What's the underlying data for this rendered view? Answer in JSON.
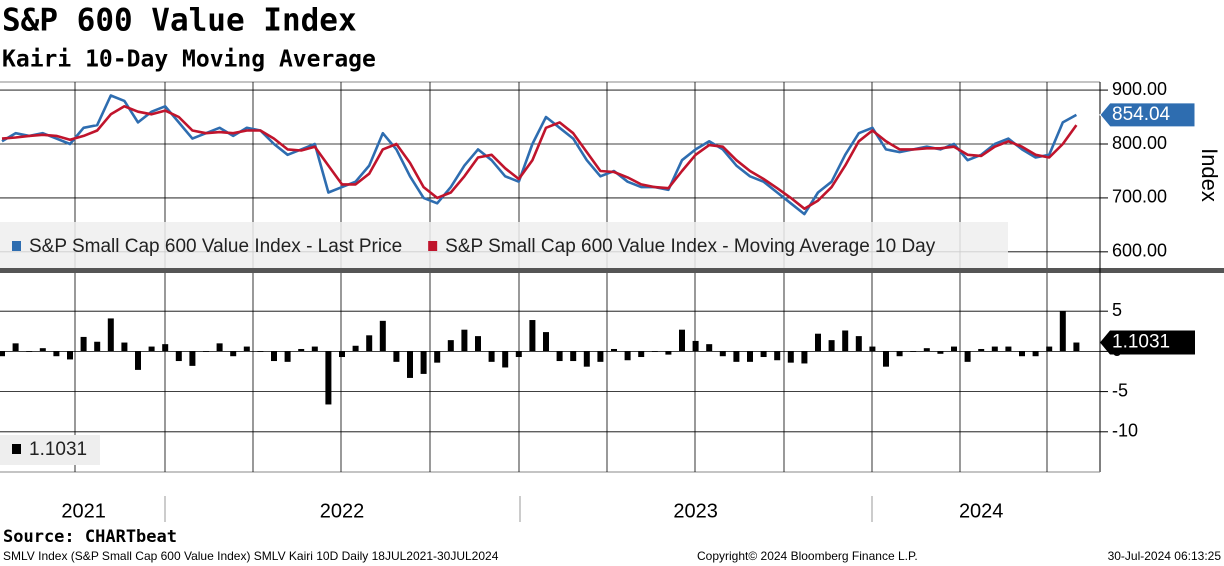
{
  "title": "S&P 600 Value Index",
  "subtitle": "Kairi 10-Day Moving Average",
  "source": "Source: CHARTbeat",
  "footer": {
    "left": "SMLV Index (S&P Small Cap 600 Value Index) SMLV Kairi 10D  Daily 18JUL2021-30JUL2024",
    "center": "Copyright© 2024 Bloomberg Finance L.P.",
    "right": "30-Jul-2024 06:13:25"
  },
  "chart_data": [
    {
      "type": "line",
      "categories": [
        null,
        null,
        null,
        null,
        null,
        null,
        "2021",
        null,
        null,
        null,
        null,
        null,
        null,
        null,
        null,
        null,
        null,
        null,
        null,
        null,
        null,
        null,
        null,
        null,
        null,
        "2022",
        null,
        null,
        null,
        null,
        null,
        null,
        null,
        null,
        null,
        null,
        null,
        null,
        null,
        null,
        null,
        null,
        null,
        null,
        null,
        null,
        null,
        null,
        null,
        null,
        null,
        "2023",
        null,
        null,
        null,
        null,
        null,
        null,
        null,
        null,
        null,
        null,
        null,
        null,
        null,
        null,
        null,
        null,
        null,
        null,
        null,
        null,
        "2024",
        null,
        null,
        null,
        null,
        null,
        null,
        null
      ],
      "y_label": "Index",
      "ylim": [
        570,
        915
      ],
      "yticks": [
        {
          "value": 600,
          "label": "600.00"
        },
        {
          "value": 700,
          "label": "700.00"
        },
        {
          "value": 800,
          "label": "800.00"
        },
        {
          "value": 900,
          "label": "900.00"
        }
      ],
      "grid": true,
      "legend": "bottom-left",
      "series": [
        {
          "name": "S&P Small Cap 600 Value Index - Last Price",
          "color": "#2e6db0",
          "values": [
            805,
            820,
            815,
            820,
            810,
            800,
            830,
            835,
            890,
            880,
            840,
            860,
            870,
            840,
            810,
            820,
            830,
            815,
            830,
            825,
            800,
            780,
            790,
            800,
            710,
            720,
            730,
            760,
            820,
            790,
            740,
            700,
            690,
            720,
            760,
            790,
            770,
            740,
            730,
            800,
            850,
            830,
            810,
            770,
            740,
            750,
            730,
            720,
            720,
            715,
            770,
            790,
            805,
            790,
            760,
            740,
            730,
            710,
            690,
            670,
            710,
            730,
            780,
            820,
            830,
            790,
            785,
            790,
            795,
            790,
            800,
            770,
            780,
            800,
            810,
            790,
            775,
            780,
            840,
            854.04
          ]
        },
        {
          "name": "S&P Small Cap 600 Value Index - Moving Average 10 Day",
          "color": "#c0142c",
          "values": [
            810,
            812,
            815,
            817,
            815,
            808,
            815,
            825,
            855,
            870,
            860,
            855,
            862,
            850,
            825,
            820,
            822,
            820,
            825,
            825,
            810,
            790,
            788,
            795,
            760,
            725,
            725,
            745,
            790,
            800,
            765,
            720,
            700,
            710,
            740,
            775,
            780,
            755,
            735,
            770,
            830,
            840,
            820,
            785,
            750,
            748,
            738,
            725,
            720,
            718,
            750,
            780,
            798,
            795,
            770,
            750,
            735,
            718,
            700,
            680,
            695,
            720,
            760,
            805,
            825,
            805,
            790,
            790,
            792,
            792,
            795,
            780,
            778,
            795,
            805,
            795,
            780,
            775,
            800,
            835
          ]
        }
      ]
    },
    {
      "type": "bar",
      "ylim": [
        -15,
        9.75
      ],
      "yticks": [
        5,
        0,
        -5,
        -10
      ],
      "grid": true,
      "legend": "bottom-left",
      "series": [
        {
          "color": "#000000",
          "values": [
            -0.6,
            1.0,
            0,
            0.4,
            -0.6,
            -1.0,
            1.8,
            1.2,
            4.1,
            1.1,
            -2.3,
            0.6,
            0.9,
            -1.2,
            -1.8,
            0,
            1.0,
            -0.6,
            0.6,
            0,
            -1.2,
            -1.3,
            0.3,
            0.6,
            -6.6,
            -0.7,
            0.7,
            2.0,
            3.8,
            -1.3,
            -3.3,
            -2.8,
            -1.4,
            1.4,
            2.7,
            1.9,
            -1.3,
            -2.0,
            -0.7,
            3.9,
            2.4,
            -1.2,
            -1.2,
            -1.9,
            -1.3,
            0.3,
            -1.1,
            -0.7,
            0,
            -0.4,
            2.7,
            1.3,
            0.9,
            -0.6,
            -1.3,
            -1.3,
            -0.7,
            -1.1,
            -1.4,
            -1.5,
            2.2,
            1.4,
            2.6,
            1.9,
            0.6,
            -1.9,
            -0.6,
            0,
            0.4,
            -0.3,
            0.6,
            -1.3,
            0.3,
            0.6,
            0.6,
            -0.6,
            -0.6,
            0.6,
            5.0,
            1.1031
          ]
        }
      ]
    }
  ]
}
